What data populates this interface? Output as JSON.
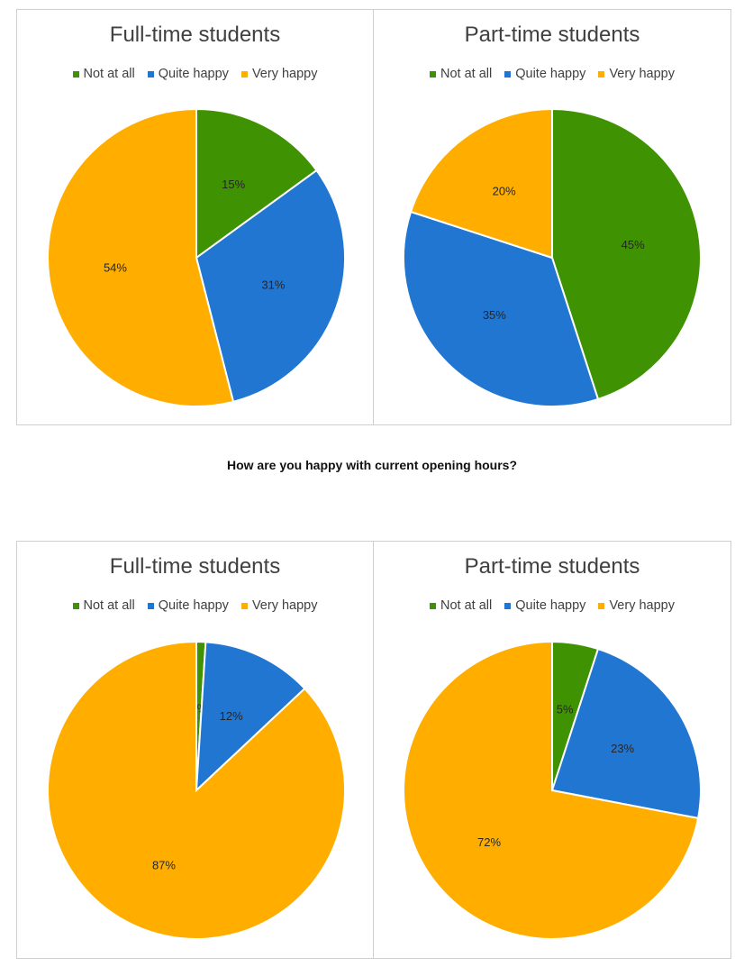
{
  "question": "How are you happy with current opening hours?",
  "legend": {
    "items": [
      {
        "label": "Not at all",
        "color": "#3f9202"
      },
      {
        "label": "Quite happy",
        "color": "#2176d2"
      },
      {
        "label": "Very happy",
        "color": "#ffae00"
      }
    ]
  },
  "panels": [
    {
      "title": "Full-time students"
    },
    {
      "title": "Part-time students"
    },
    {
      "title": "Full-time students"
    },
    {
      "title": "Part-time students"
    }
  ],
  "chart_data": [
    {
      "type": "pie",
      "title": "Full-time students",
      "categories": [
        "Not at all",
        "Quite happy",
        "Very happy"
      ],
      "values": [
        15,
        31,
        54
      ],
      "labels": [
        "15%",
        "31%",
        "54%"
      ],
      "legend": "top"
    },
    {
      "type": "pie",
      "title": "Part-time students",
      "categories": [
        "Not at all",
        "Quite happy",
        "Very happy"
      ],
      "values": [
        45,
        35,
        20
      ],
      "labels": [
        "45%",
        "35%",
        "20%"
      ],
      "legend": "top"
    },
    {
      "type": "pie",
      "title": "Full-time students",
      "categories": [
        "Not at all",
        "Quite happy",
        "Very happy"
      ],
      "values": [
        1,
        12,
        87
      ],
      "labels": [
        "1%",
        "12%",
        "87%"
      ],
      "legend": "top"
    },
    {
      "type": "pie",
      "title": "Part-time students",
      "categories": [
        "Not at all",
        "Quite happy",
        "Very happy"
      ],
      "values": [
        5,
        23,
        72
      ],
      "labels": [
        "5%",
        "23%",
        "72%"
      ],
      "legend": "top"
    }
  ]
}
